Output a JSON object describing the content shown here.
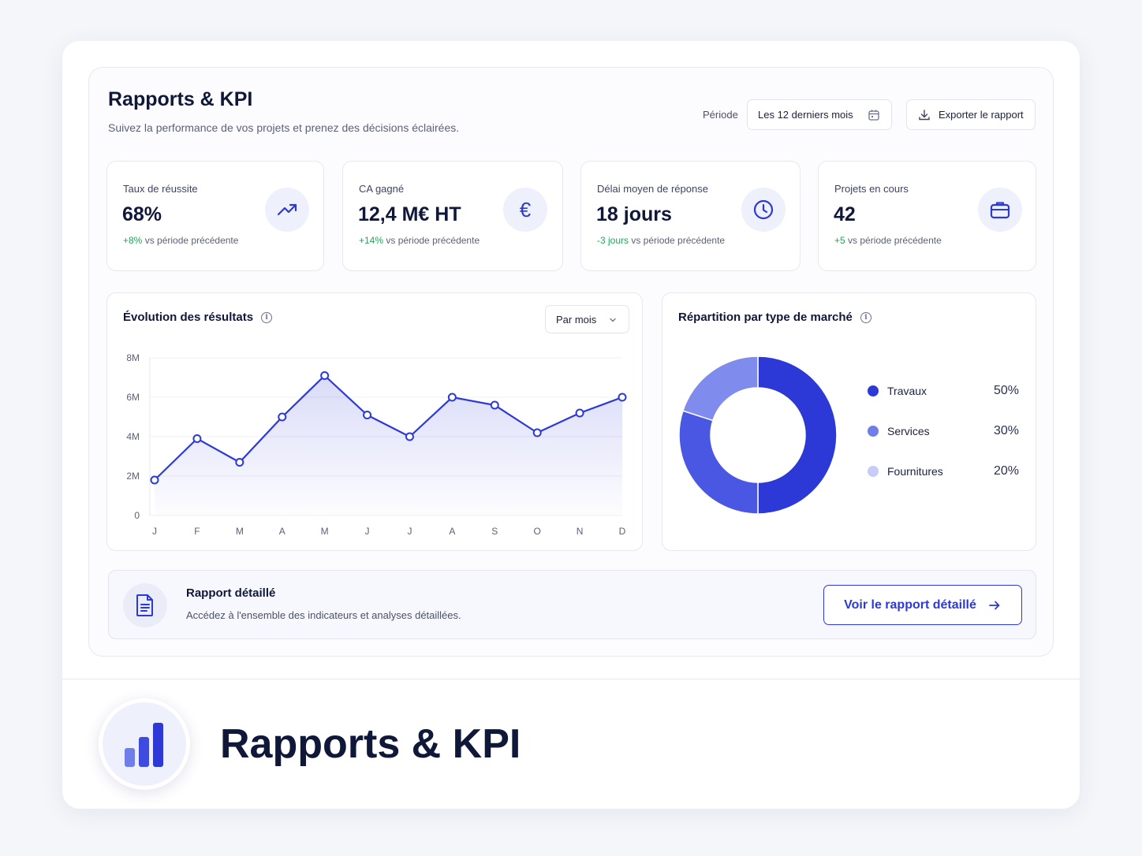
{
  "header": {
    "title": "Rapports & KPI",
    "subtitle": "Suivez la performance de vos projets et prenez des décisions éclairées.",
    "periode_label": "Période",
    "periode_value": "Les 12 derniers mois",
    "export_label": "Exporter le rapport"
  },
  "kpis": [
    {
      "label": "Taux de réussite",
      "value": "68%",
      "delta": "+8%",
      "delta_suffix": " vs période précédente",
      "icon": "trend-up-icon"
    },
    {
      "label": "CA gagné",
      "value": "12,4 M€ HT",
      "delta": "+14%",
      "delta_suffix": " vs période précédente",
      "icon": "euro-icon"
    },
    {
      "label": "Délai moyen de réponse",
      "value": "18 jours",
      "delta": "-3 jours",
      "delta_suffix": " vs période précédente",
      "icon": "clock-icon"
    },
    {
      "label": "Projets en cours",
      "value": "42",
      "delta": "+5",
      "delta_suffix": " vs période précédente",
      "icon": "briefcase-icon"
    }
  ],
  "line_card": {
    "title": "Évolution des résultats",
    "granularity": "Par mois"
  },
  "donut_card": {
    "title": "Répartition par type de marché"
  },
  "report": {
    "title": "Rapport détaillé",
    "subtitle": "Accédez à l'ensemble des indicateurs et analyses détaillées.",
    "button": "Voir le rapport détaillé"
  },
  "footer": {
    "title": "Rapports & KPI"
  },
  "colors": {
    "accent": "#2d39d6",
    "positive": "#22a55a",
    "donut": [
      "#2d39d6",
      "#6f7ee9",
      "#c6ccf7"
    ]
  },
  "chart_data": [
    {
      "type": "line",
      "title": "Évolution des résultats",
      "x": [
        "J",
        "F",
        "M",
        "A",
        "M",
        "J",
        "J",
        "A",
        "S",
        "O",
        "N",
        "D"
      ],
      "y_ticks": [
        "0",
        "2M",
        "4M",
        "6M",
        "8M"
      ],
      "ylim": [
        0,
        8
      ],
      "series": [
        {
          "values": [
            1.8,
            3.9,
            2.7,
            5.0,
            7.1,
            5.1,
            4.0,
            6.0,
            5.6,
            4.2,
            5.2,
            6.0
          ]
        }
      ],
      "grid": true
    },
    {
      "type": "pie",
      "title": "Répartition par type de marché",
      "labels": [
        "Travaux",
        "Services",
        "Fournitures"
      ],
      "values": [
        50,
        30,
        20
      ],
      "value_labels": [
        "50%",
        "30%",
        "20%"
      ],
      "legend": "right"
    }
  ]
}
